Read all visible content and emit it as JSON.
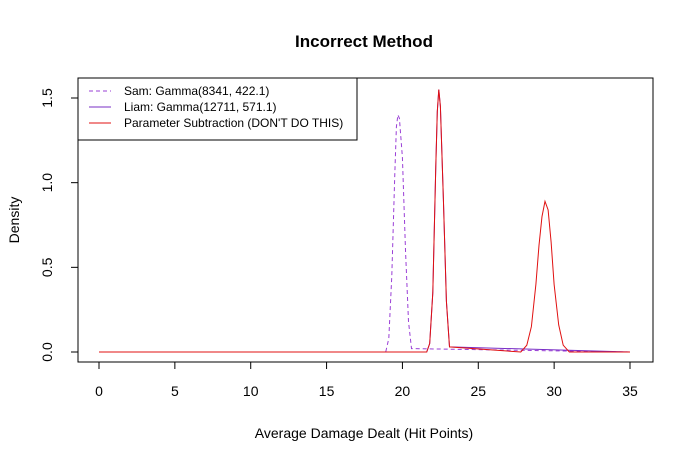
{
  "chart_data": {
    "type": "line",
    "title": "Incorrect Method",
    "xlabel": "Average Damage Dealt (Hit Points)",
    "ylabel": "Density",
    "xlim": [
      0,
      35
    ],
    "ylim": [
      0,
      1.55
    ],
    "xticks": [
      0,
      5,
      10,
      15,
      20,
      25,
      30,
      35
    ],
    "yticks": [
      0.0,
      0.5,
      1.0,
      1.5
    ],
    "xtick_labels": [
      "0",
      "5",
      "10",
      "15",
      "20",
      "25",
      "30",
      "35"
    ],
    "ytick_labels": [
      "0.0",
      "0.5",
      "1.0",
      "1.5"
    ],
    "legend_position": "top-left",
    "grid": false,
    "series": [
      {
        "name": "Sam: Gamma(8341, 422.1)",
        "color": "#9a3fd6",
        "dash": "dashed",
        "x": [
          0,
          18.9,
          19.1,
          19.3,
          19.5,
          19.6,
          19.7,
          19.8,
          20.0,
          20.2,
          20.4,
          20.6,
          35
        ],
        "y": [
          0,
          0,
          0.08,
          0.45,
          1.05,
          1.33,
          1.4,
          1.38,
          1.15,
          0.6,
          0.18,
          0.02,
          0
        ]
      },
      {
        "name": "Liam: Gamma(12711, 571.1)",
        "color": "#7a2fc6",
        "dash": "solid",
        "x": [
          0,
          21.6,
          21.8,
          22.0,
          22.2,
          22.3,
          22.4,
          22.5,
          22.7,
          22.9,
          23.1,
          35
        ],
        "y": [
          0,
          0,
          0.05,
          0.35,
          1.1,
          1.42,
          1.55,
          1.45,
          0.9,
          0.3,
          0.03,
          0
        ]
      },
      {
        "name": "Parameter Subtraction (DON'T DO THIS)",
        "color": "#e01010",
        "dash": "solid",
        "x": [
          0,
          18.9,
          19.1,
          19.3,
          19.5,
          19.6,
          19.7,
          19.8,
          20.0,
          20.2,
          20.4,
          20.6,
          21.6,
          21.8,
          22.0,
          22.2,
          22.3,
          22.4,
          22.5,
          22.7,
          22.9,
          23.1,
          27.8,
          28.2,
          28.5,
          28.8,
          29.0,
          29.2,
          29.4,
          29.6,
          29.8,
          30.0,
          30.3,
          30.6,
          31.0,
          35
        ],
        "y": [
          0,
          0,
          0.0,
          0.0,
          0.0,
          0.0,
          0.0,
          0.0,
          0.0,
          0.0,
          0.0,
          0.0,
          0,
          0.05,
          0.35,
          1.1,
          1.42,
          1.55,
          1.45,
          0.9,
          0.3,
          0.03,
          0,
          0.04,
          0.15,
          0.4,
          0.63,
          0.8,
          0.89,
          0.84,
          0.65,
          0.4,
          0.16,
          0.04,
          0,
          0
        ]
      }
    ]
  }
}
